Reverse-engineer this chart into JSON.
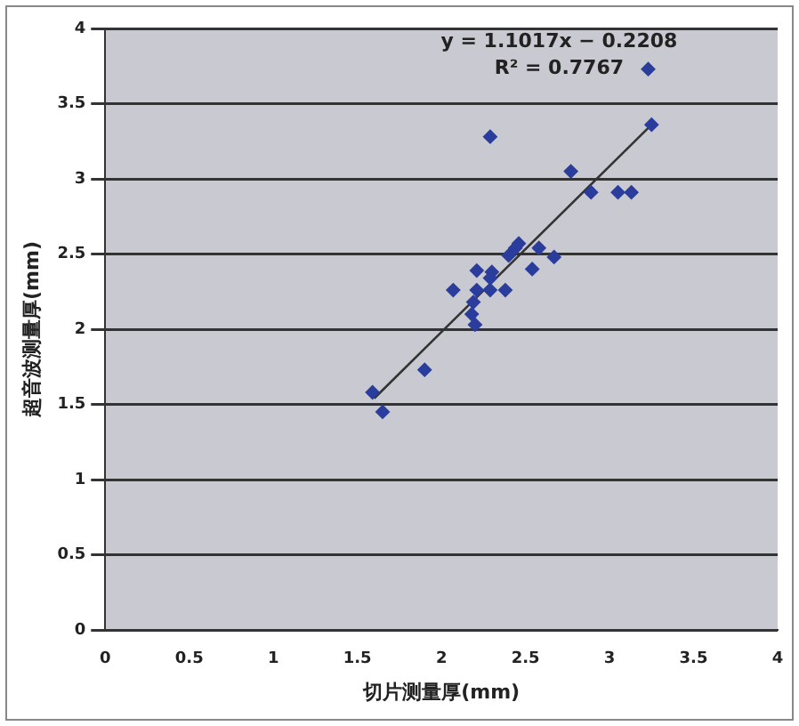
{
  "chart_data": {
    "type": "scatter",
    "xlabel": "切片测量厚(mm)",
    "ylabel": "超音波测量厚(mm)",
    "annotations": [
      "y = 1.1017x − 0.2208",
      "R² = 0.7767"
    ],
    "xlim": [
      0,
      4
    ],
    "xticks": [
      0,
      0.5,
      1,
      1.5,
      2,
      2.5,
      3,
      3.5,
      4
    ],
    "ylim": [
      0,
      4
    ],
    "yticks": [
      0,
      0.5,
      1,
      1.5,
      2,
      2.5,
      3,
      3.5,
      4
    ],
    "grid": "y",
    "legend": false,
    "marker": "diamond",
    "series": [
      {
        "color": "#2b3d9c",
        "x": [
          3.23,
          3.25,
          2.29,
          2.77,
          2.89,
          3.05,
          3.13,
          2.46,
          2.44,
          2.4,
          2.58,
          2.67,
          2.54,
          2.21,
          2.3,
          2.29,
          2.07,
          2.21,
          2.29,
          2.38,
          2.19,
          2.18,
          2.2,
          1.9,
          1.59,
          1.65
        ],
        "values": [
          3.73,
          3.36,
          3.28,
          3.05,
          2.91,
          2.91,
          2.91,
          2.57,
          2.54,
          2.49,
          2.54,
          2.48,
          2.4,
          2.39,
          2.38,
          2.34,
          2.26,
          2.26,
          2.26,
          2.26,
          2.18,
          2.1,
          2.03,
          1.73,
          1.58,
          1.45
        ]
      },
      {
        "type": "line",
        "color": "#333333",
        "marker": "none",
        "x": [
          1.6,
          3.25
        ],
        "values": [
          1.54,
          3.36
        ]
      }
    ]
  }
}
